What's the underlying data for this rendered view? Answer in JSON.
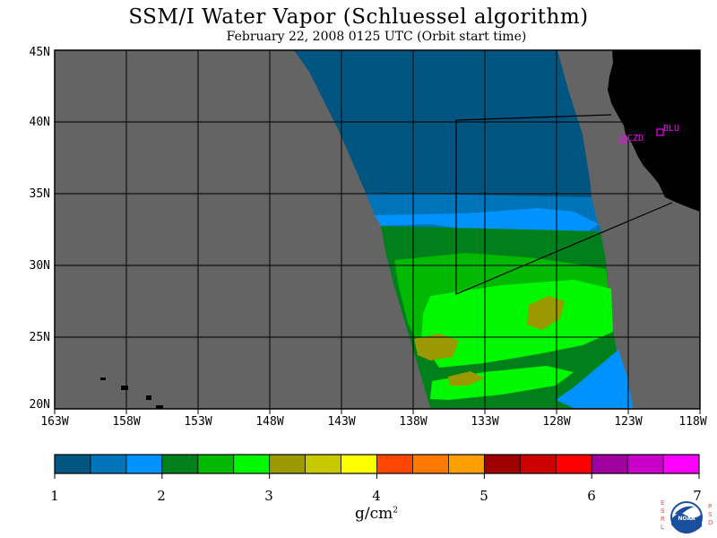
{
  "title": "SSM/I Water Vapor (Schluessel algorithm)",
  "subtitle": "February 22, 2008  0125 UTC  (Orbit start time)",
  "y_labels": [
    "45N",
    "40N",
    "35N",
    "30N",
    "25N",
    "20N"
  ],
  "x_labels": [
    "163W",
    "158W",
    "153W",
    "148W",
    "143W",
    "138W",
    "133W",
    "128W",
    "123W",
    "118W"
  ],
  "colorbar": {
    "labels": [
      "1",
      "2",
      "3",
      "4",
      "5",
      "6",
      "7"
    ],
    "units": "g/cm",
    "units_sup": "2",
    "colors": [
      "#005581",
      "#0074b8",
      "#0092ff",
      "#00801b",
      "#00b900",
      "#00f900",
      "#9a9a00",
      "#c8c800",
      "#ffff00",
      "#ff4600",
      "#ff7800",
      "#ffa000",
      "#9e0000",
      "#cd0000",
      "#ff0000",
      "#a000a0",
      "#c800c8",
      "#ff00ff"
    ]
  },
  "stations": [
    {
      "label": "CZD"
    },
    {
      "label": "BLU"
    }
  ],
  "logo": {
    "left_text": "ESRL",
    "right_text": "PSD",
    "center_text": "NOAA"
  },
  "colors": {
    "ocean_nodata": "#646464",
    "land": "#000000",
    "grid": "#000000",
    "station": "#ff00ff"
  }
}
